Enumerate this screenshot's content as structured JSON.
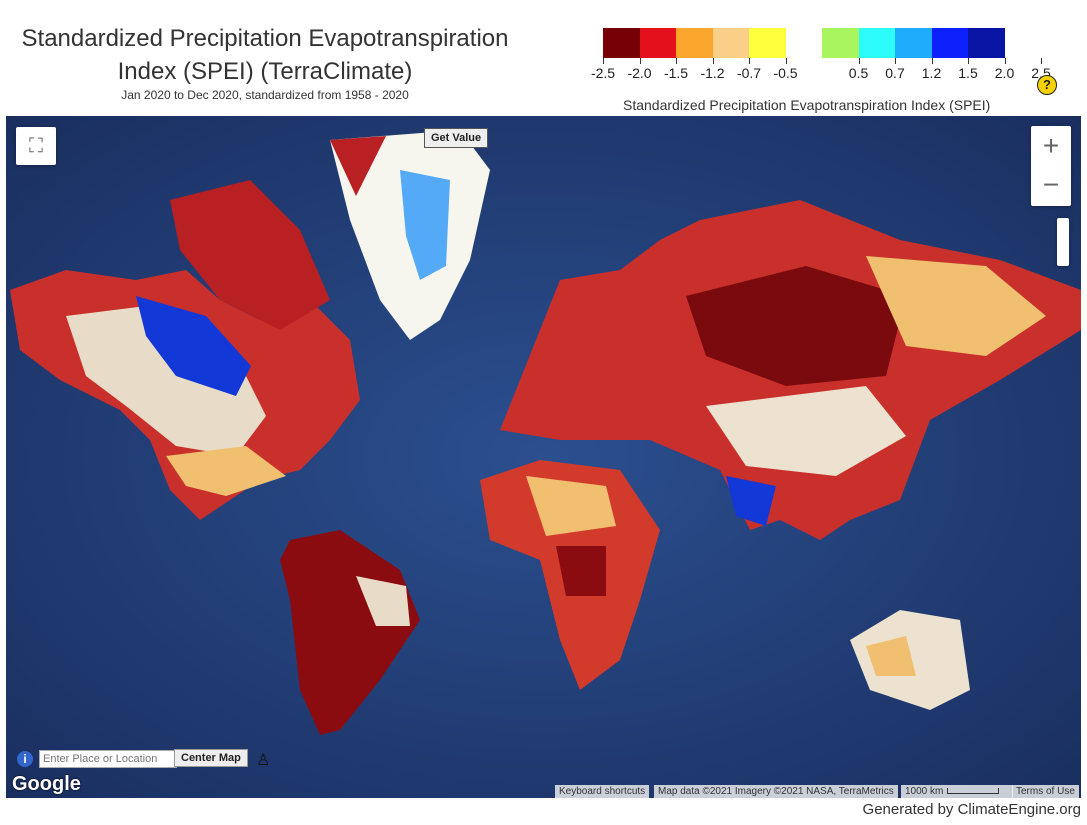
{
  "title": "Standardized Precipitation Evapotranspiration Index (SPEI) (TerraClimate)",
  "title_line1": "Standardized Precipitation Evapotranspiration",
  "title_line2": "Index (SPEI) (TerraClimate)",
  "subtitle": "Jan 2020 to Dec 2020, standardized from 1958 - 2020",
  "legend": {
    "title": "Standardized Precipitation Evapotranspiration Index (SPEI)",
    "colors": [
      "#750006",
      "#e4101c",
      "#faa52c",
      "#fad088",
      "#ffff3e",
      "#ffffff",
      "#a8f55e",
      "#2cfcfc",
      "#1eacfc",
      "#0c20fc",
      "#0814a4"
    ],
    "ticks": [
      "-2.5",
      "-2.0",
      "-1.5",
      "-1.2",
      "-0.7",
      "-0.5",
      "0.5",
      "0.7",
      "1.2",
      "1.5",
      "2.0",
      "2.5"
    ]
  },
  "help_icon": "?",
  "map": {
    "get_value_label": "Get Value",
    "zoom_in": "+",
    "zoom_out": "−",
    "search_placeholder": "Enter Place or Location",
    "center_map_label": "Center Map",
    "google_logo": "Google",
    "keyboard_shortcuts": "Keyboard shortcuts",
    "map_data": "Map data ©2021 Imagery ©2021 NASA, TerraMetrics",
    "scale": "1000 km",
    "terms": "Terms of Use"
  },
  "footer": "Generated by ClimateEngine.org"
}
